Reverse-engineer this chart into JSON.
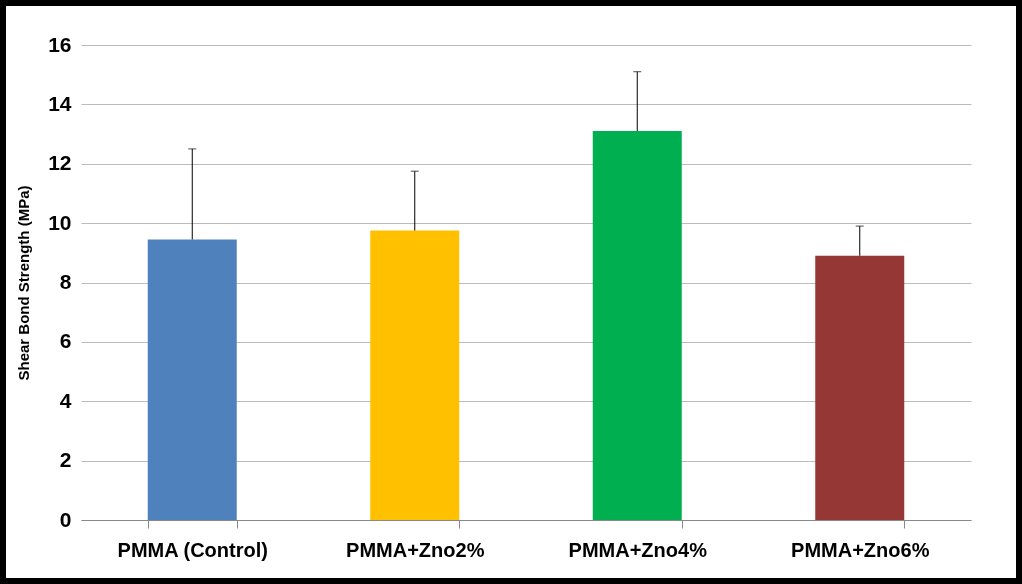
{
  "chart_data": {
    "type": "bar",
    "ylabel": "Shear Bond Strength (MPa)",
    "categories": [
      "PMMA (Control)",
      "PMMA+Zno2%",
      "PMMA+Zno4%",
      "PMMA+Zno6%"
    ],
    "values": [
      9.45,
      9.75,
      13.1,
      8.9
    ],
    "colors": [
      "#4f81bd",
      "#ffc000",
      "#00b050",
      "#953735"
    ],
    "errors": [
      [
        9.45,
        12.5
      ],
      [
        9.75,
        11.75
      ],
      [
        13.1,
        15.1
      ],
      [
        8.9,
        9.9
      ]
    ],
    "ylim": [
      0,
      16
    ],
    "yticks": [
      0,
      2,
      4,
      6,
      8,
      10,
      12,
      14,
      16
    ],
    "grid": "y"
  }
}
